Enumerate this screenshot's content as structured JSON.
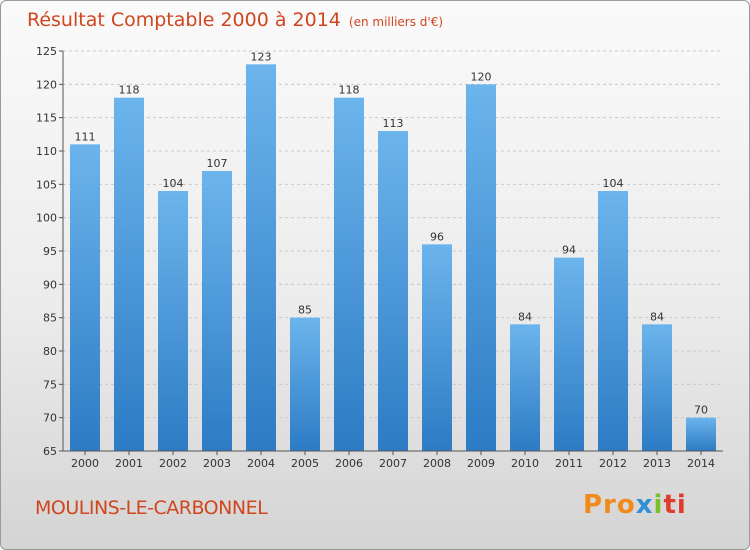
{
  "header": {
    "title": "Résultat Comptable 2000 à 2014",
    "unit": "(en milliers d'€)"
  },
  "commune": "MOULINS-LE-CARBONNEL",
  "logo": {
    "text": "Proxiti",
    "parts": [
      "Pro",
      "x",
      "i",
      "ti"
    ]
  },
  "colors": {
    "bar_top": "#6cb4ec",
    "bar_bottom": "#2c7bc4",
    "title": "#d0461e"
  },
  "chart_data": {
    "type": "bar",
    "title": "Résultat Comptable 2000 à 2014 (en milliers d'€)",
    "xlabel": "",
    "ylabel": "",
    "categories": [
      "2000",
      "2001",
      "2002",
      "2003",
      "2004",
      "2005",
      "2006",
      "2007",
      "2008",
      "2009",
      "2010",
      "2011",
      "2012",
      "2013",
      "2014"
    ],
    "values": [
      111,
      118,
      104,
      107,
      123,
      85,
      118,
      113,
      96,
      120,
      84,
      94,
      104,
      84,
      70
    ],
    "ylim": [
      65,
      125
    ],
    "yticks": [
      65,
      70,
      75,
      80,
      85,
      90,
      95,
      100,
      105,
      110,
      115,
      120,
      125
    ],
    "grid": true
  }
}
